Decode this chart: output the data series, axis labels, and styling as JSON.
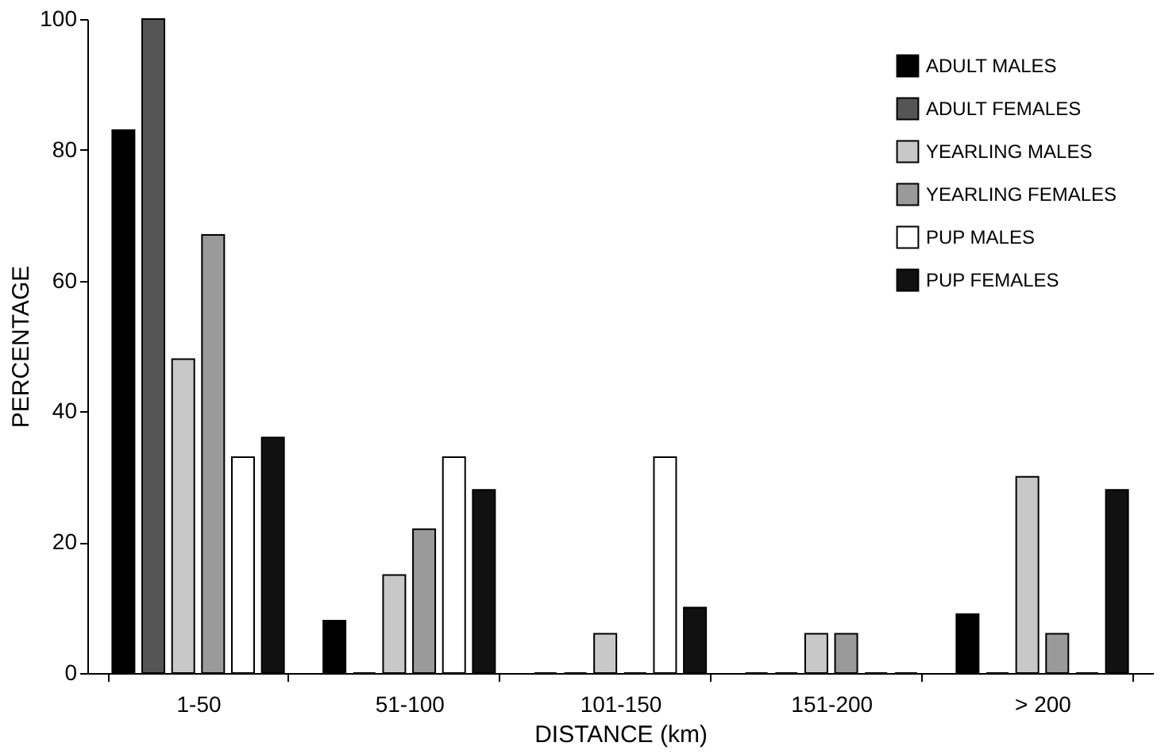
{
  "chart_data": {
    "type": "bar",
    "xlabel": "DISTANCE (km)",
    "ylabel": "PERCENTAGE",
    "categories": [
      "1-50",
      "51-100",
      "101-150",
      "151-200",
      "> 200"
    ],
    "series": [
      {
        "name": "ADULT MALES",
        "color": "#000000",
        "values": [
          83,
          8,
          0,
          0,
          9
        ]
      },
      {
        "name": "ADULT FEMALES",
        "color": "#555555",
        "values": [
          100,
          0,
          0,
          0,
          0
        ]
      },
      {
        "name": "YEARLING MALES",
        "color": "#c8c8c8",
        "values": [
          48,
          15,
          6,
          6,
          30
        ]
      },
      {
        "name": "YEARLING FEMALES",
        "color": "#9a9a9a",
        "values": [
          67,
          22,
          0,
          6,
          6
        ]
      },
      {
        "name": "PUP MALES",
        "color": "#ffffff",
        "values": [
          33,
          33,
          33,
          0,
          0
        ]
      },
      {
        "name": "PUP FEMALES",
        "color": "#111111",
        "values": [
          36,
          28,
          10,
          0,
          28
        ]
      }
    ],
    "ylim": [
      0,
      100
    ],
    "yticks": [
      0,
      20,
      40,
      60,
      80,
      100
    ],
    "grid": false,
    "legend": "top right"
  }
}
